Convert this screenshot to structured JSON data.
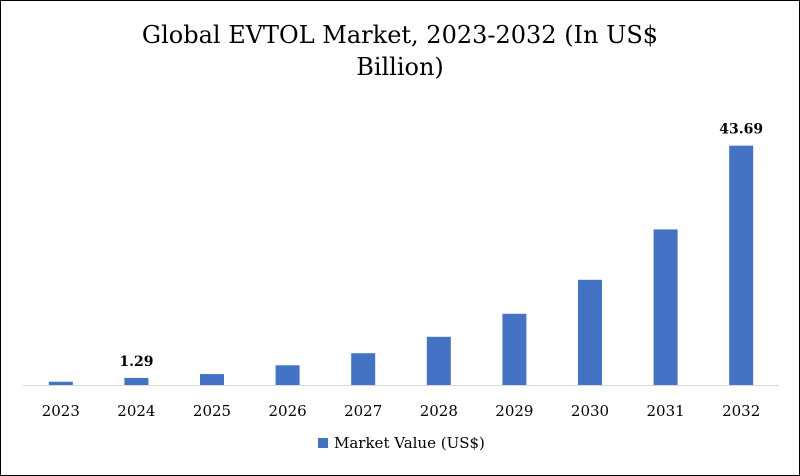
{
  "chart_data": {
    "type": "bar",
    "title_lines": [
      "Global EVTOL Market, 2023-2032 (In US$",
      "Billion)"
    ],
    "categories": [
      "2023",
      "2024",
      "2025",
      "2026",
      "2027",
      "2028",
      "2029",
      "2030",
      "2031",
      "2032"
    ],
    "series": [
      {
        "name": "Market Value (US$)",
        "color": "#4472C4",
        "values": [
          0.6,
          1.29,
          2.0,
          3.6,
          5.8,
          8.8,
          13.0,
          19.2,
          28.4,
          43.69
        ]
      }
    ],
    "data_labels": {
      "1": "1.29",
      "9": "43.69"
    },
    "ylim": [
      0,
      46
    ],
    "y_axis_visible": false,
    "grid": false,
    "legend_position": "bottom"
  }
}
